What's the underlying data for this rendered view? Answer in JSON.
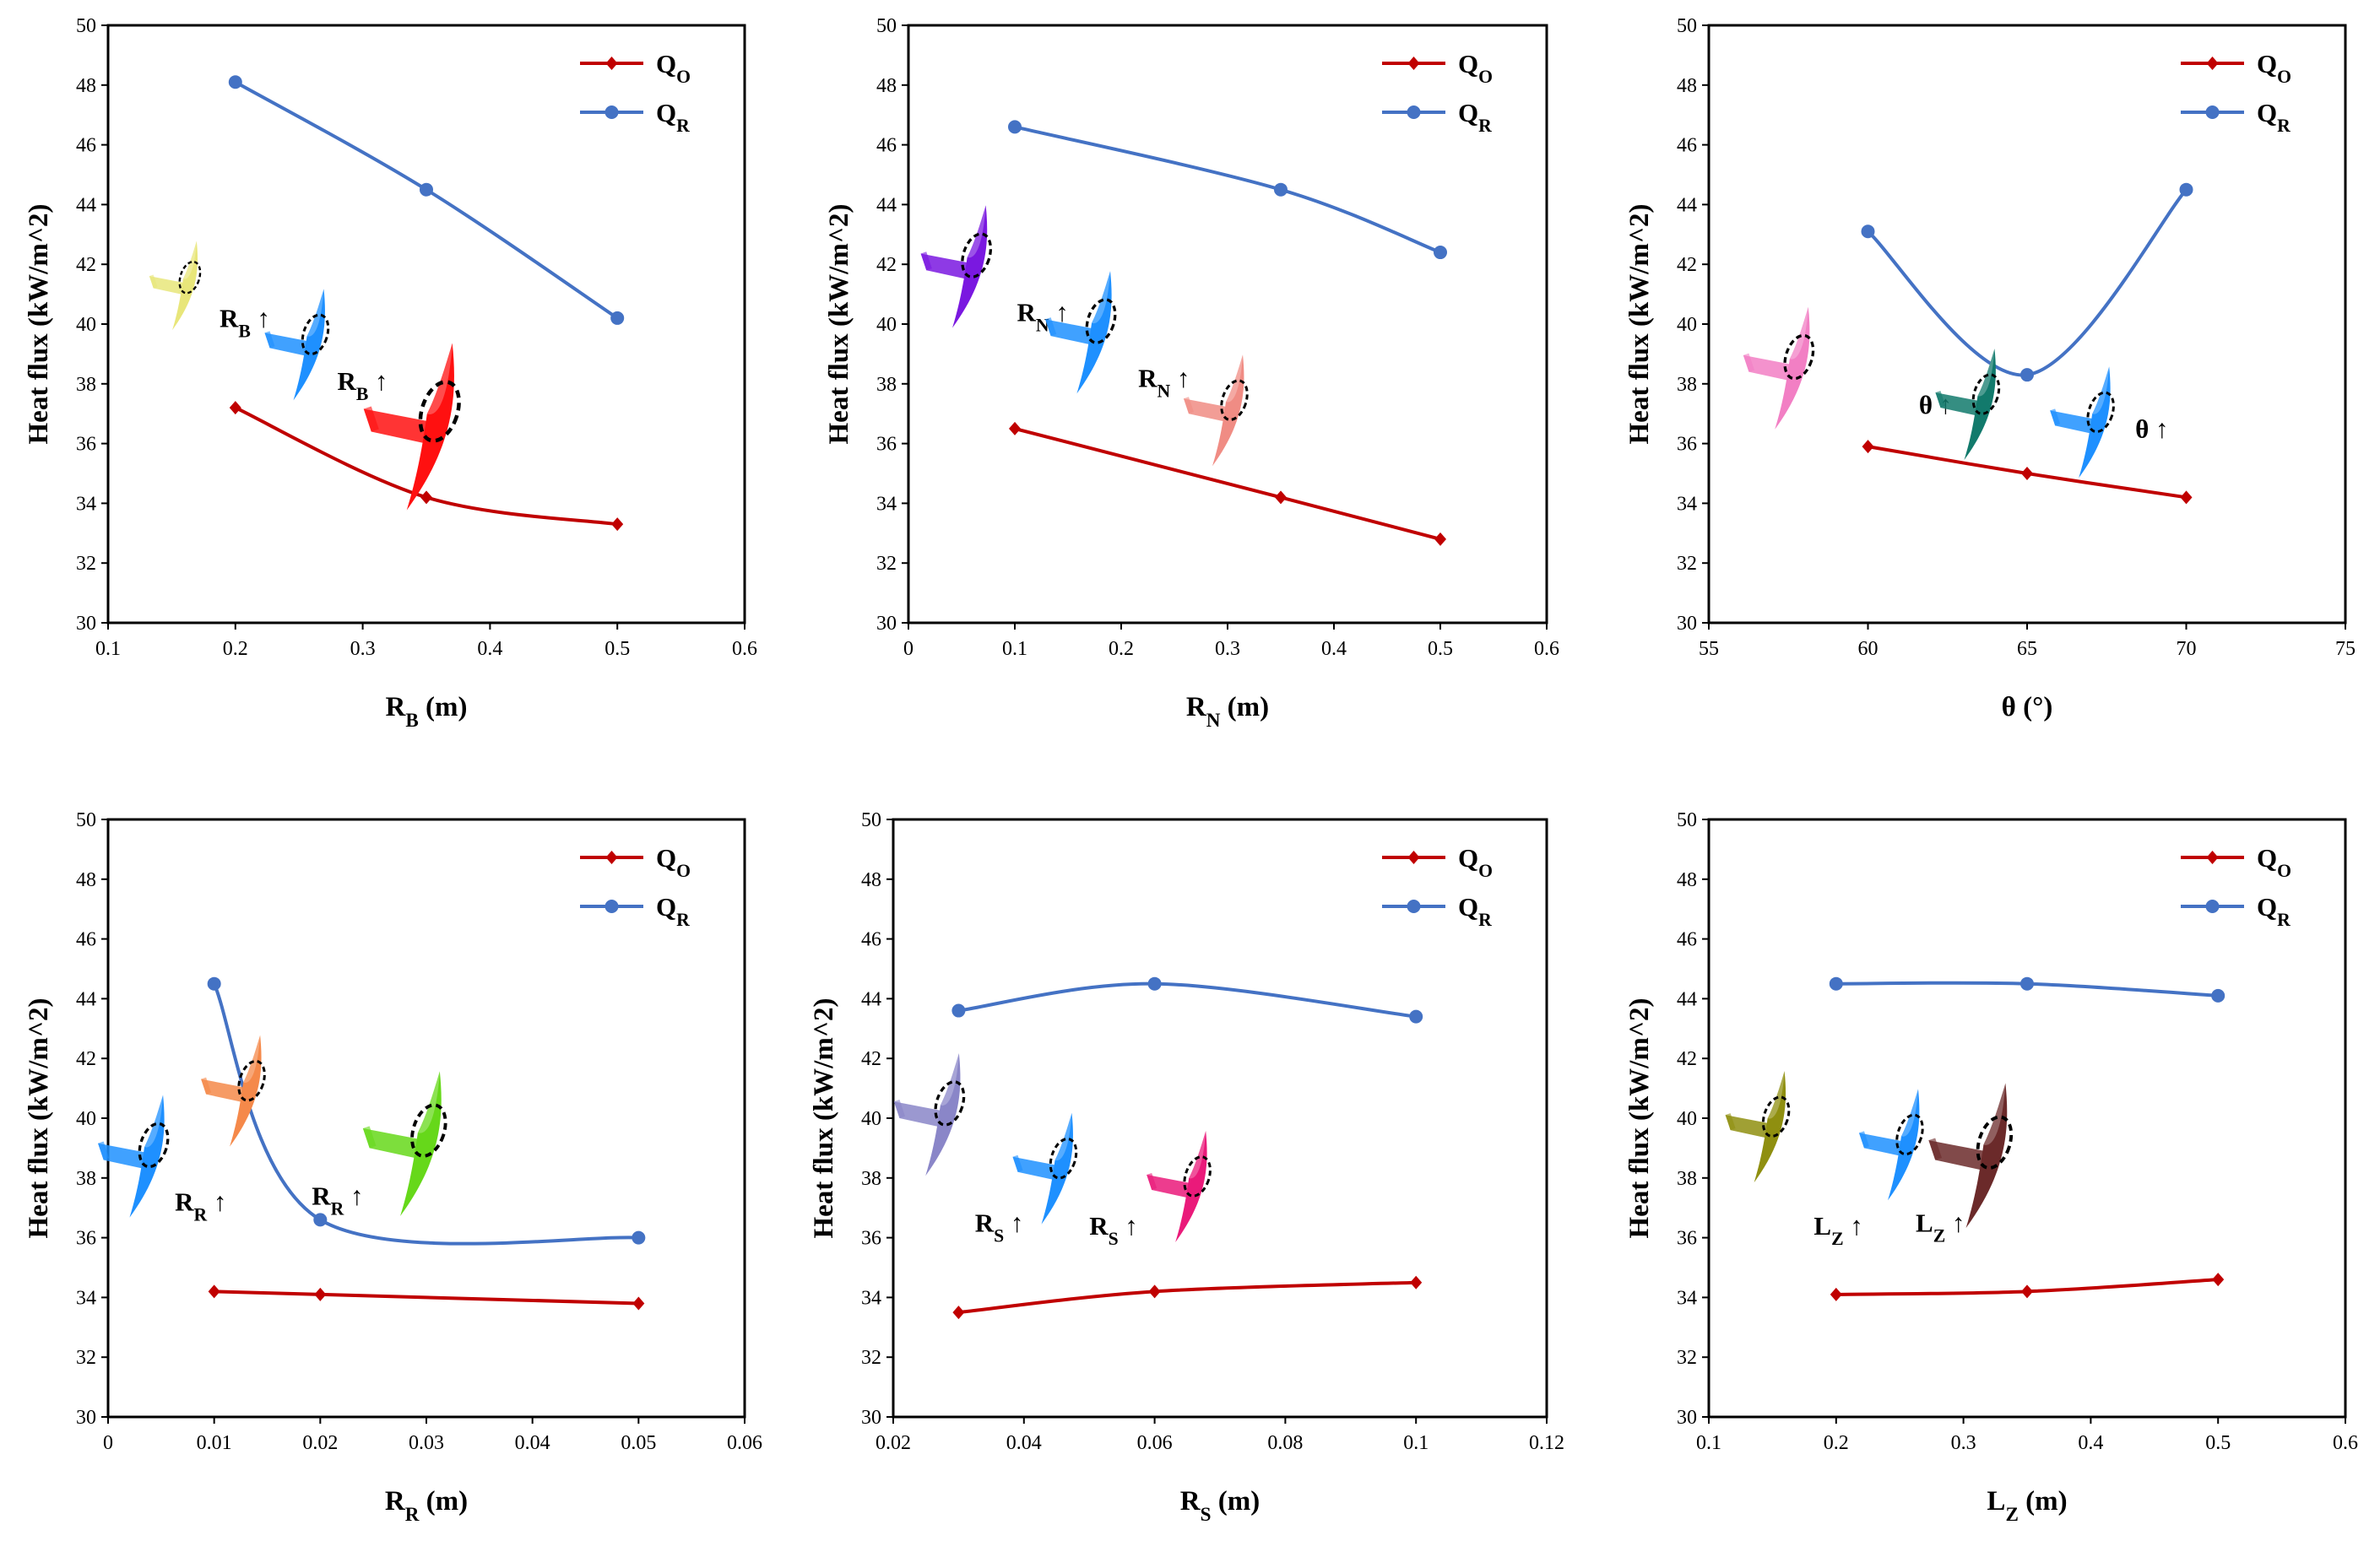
{
  "colors": {
    "qo": "#c00000",
    "qr": "#4472c4"
  },
  "chart_data": [
    {
      "type": "line",
      "xlabel": {
        "main": "R",
        "sub": "B",
        "unit": " (m)"
      },
      "ylabel": "Heat flux (kW/m^2)",
      "xlim": [
        0.1,
        0.6
      ],
      "xticks": [
        0.1,
        0.2,
        0.3,
        0.4,
        0.5,
        0.6
      ],
      "ylim": [
        30,
        50
      ],
      "yticks": [
        30,
        32,
        34,
        36,
        38,
        40,
        42,
        44,
        46,
        48,
        50
      ],
      "series": [
        {
          "name": {
            "main": "Q",
            "sub": "O"
          },
          "x": [
            0.2,
            0.35,
            0.5
          ],
          "y": [
            37.2,
            34.2,
            33.3
          ]
        },
        {
          "name": {
            "main": "Q",
            "sub": "R"
          },
          "x": [
            0.2,
            0.35,
            0.5
          ],
          "y": [
            48.1,
            44.5,
            40.2
          ]
        }
      ],
      "annotations": [
        {
          "main": "R",
          "sub": "B",
          "arrow": " ↑"
        },
        {
          "main": "R",
          "sub": "B",
          "arrow": " ↑"
        }
      ],
      "icons": [
        {
          "name": "lightyellow-blade-icon",
          "color": "#e8e67a"
        },
        {
          "name": "blue-blade-icon",
          "color": "#1e90ff"
        },
        {
          "name": "red-blade-icon",
          "color": "#ff1010"
        }
      ]
    },
    {
      "type": "line",
      "xlabel": {
        "main": "R",
        "sub": "N",
        "unit": " (m)"
      },
      "ylabel": "Heat flux (kW/m^2)",
      "xlim": [
        0,
        0.6
      ],
      "xticks": [
        0,
        0.1,
        0.2,
        0.3,
        0.4,
        0.5,
        0.6
      ],
      "ylim": [
        30,
        50
      ],
      "yticks": [
        30,
        32,
        34,
        36,
        38,
        40,
        42,
        44,
        46,
        48,
        50
      ],
      "series": [
        {
          "name": {
            "main": "Q",
            "sub": "O"
          },
          "x": [
            0.1,
            0.35,
            0.5
          ],
          "y": [
            36.5,
            34.2,
            32.8
          ]
        },
        {
          "name": {
            "main": "Q",
            "sub": "R"
          },
          "x": [
            0.1,
            0.35,
            0.5
          ],
          "y": [
            46.6,
            44.5,
            42.4
          ]
        }
      ],
      "annotations": [
        {
          "main": "R",
          "sub": "N",
          "arrow": " ↑"
        },
        {
          "main": "R",
          "sub": "N",
          "arrow": " ↑"
        }
      ],
      "icons": [
        {
          "name": "purple-blade-icon",
          "color": "#7a18e0"
        },
        {
          "name": "blue-blade-icon",
          "color": "#1e90ff"
        },
        {
          "name": "salmon-blade-icon",
          "color": "#f08c84"
        }
      ]
    },
    {
      "type": "line",
      "xlabel": {
        "main": "θ",
        "sub": "",
        "unit": " (°)"
      },
      "ylabel": "Heat flux (kW/m^2)",
      "xlim": [
        55,
        75
      ],
      "xticks": [
        55,
        60,
        65,
        70,
        75
      ],
      "ylim": [
        30,
        50
      ],
      "yticks": [
        30,
        32,
        34,
        36,
        38,
        40,
        42,
        44,
        46,
        48,
        50
      ],
      "series": [
        {
          "name": {
            "main": "Q",
            "sub": "O"
          },
          "x": [
            60,
            65,
            70
          ],
          "y": [
            35.9,
            35.0,
            34.2
          ]
        },
        {
          "name": {
            "main": "Q",
            "sub": "R"
          },
          "x": [
            60,
            65,
            70
          ],
          "y": [
            43.1,
            38.3,
            44.5
          ]
        }
      ],
      "annotations": [
        {
          "main": "θ",
          "sub": "",
          "arrow": " ↑"
        },
        {
          "main": "θ",
          "sub": "",
          "arrow": " ↑"
        }
      ],
      "icons": [
        {
          "name": "pink-blade-icon",
          "color": "#f27fc4"
        },
        {
          "name": "teal-blade-icon",
          "color": "#127a6c"
        },
        {
          "name": "blue-blade-icon",
          "color": "#1e90ff"
        }
      ]
    },
    {
      "type": "line",
      "xlabel": {
        "main": "R",
        "sub": "R",
        "unit": " (m)"
      },
      "ylabel": "Heat flux (kW/m^2)",
      "xlim": [
        0,
        0.06
      ],
      "xticks": [
        0,
        0.01,
        0.02,
        0.03,
        0.04,
        0.05,
        0.06
      ],
      "ylim": [
        30,
        50
      ],
      "yticks": [
        30,
        32,
        34,
        36,
        38,
        40,
        42,
        44,
        46,
        48,
        50
      ],
      "series": [
        {
          "name": {
            "main": "Q",
            "sub": "O"
          },
          "x": [
            0.01,
            0.02,
            0.05
          ],
          "y": [
            34.2,
            34.1,
            33.8
          ]
        },
        {
          "name": {
            "main": "Q",
            "sub": "R"
          },
          "x": [
            0.01,
            0.02,
            0.05
          ],
          "y": [
            44.5,
            36.6,
            36.0
          ]
        }
      ],
      "annotations": [
        {
          "main": "R",
          "sub": "R",
          "arrow": " ↑"
        },
        {
          "main": "R",
          "sub": "R",
          "arrow": " ↑"
        }
      ],
      "icons": [
        {
          "name": "blue-blade-icon",
          "color": "#1e90ff"
        },
        {
          "name": "orange-blade-icon",
          "color": "#f5894a"
        },
        {
          "name": "green-blade-icon",
          "color": "#66d81a"
        }
      ]
    },
    {
      "type": "line",
      "xlabel": {
        "main": "R",
        "sub": "S",
        "unit": " (m)"
      },
      "ylabel": "Heat flux (kW/m^2)",
      "xlim": [
        0.02,
        0.12
      ],
      "xticks": [
        0.02,
        0.04,
        0.06,
        0.08,
        0.1,
        0.12
      ],
      "ylim": [
        30,
        50
      ],
      "yticks": [
        30,
        32,
        34,
        36,
        38,
        40,
        42,
        44,
        46,
        48,
        50
      ],
      "series": [
        {
          "name": {
            "main": "Q",
            "sub": "O"
          },
          "x": [
            0.03,
            0.06,
            0.1
          ],
          "y": [
            33.5,
            34.2,
            34.5
          ]
        },
        {
          "name": {
            "main": "Q",
            "sub": "R"
          },
          "x": [
            0.03,
            0.06,
            0.1
          ],
          "y": [
            43.6,
            44.5,
            43.4
          ]
        }
      ],
      "annotations": [
        {
          "main": "R",
          "sub": "S",
          "arrow": " ↑"
        },
        {
          "main": "R",
          "sub": "S",
          "arrow": " ↑"
        }
      ],
      "icons": [
        {
          "name": "lavender-blade-icon",
          "color": "#8a86c8"
        },
        {
          "name": "blue-blade-icon",
          "color": "#1e90ff"
        },
        {
          "name": "magenta-blade-icon",
          "color": "#ea1a7a"
        }
      ]
    },
    {
      "type": "line",
      "xlabel": {
        "main": "L",
        "sub": "Z",
        "unit": " (m)"
      },
      "ylabel": "Heat flux (kW/m^2)",
      "xlim": [
        0.1,
        0.6
      ],
      "xticks": [
        0.1,
        0.2,
        0.3,
        0.4,
        0.5,
        0.6
      ],
      "ylim": [
        30,
        50
      ],
      "yticks": [
        30,
        32,
        34,
        36,
        38,
        40,
        42,
        44,
        46,
        48,
        50
      ],
      "series": [
        {
          "name": {
            "main": "Q",
            "sub": "O"
          },
          "x": [
            0.2,
            0.35,
            0.5
          ],
          "y": [
            34.1,
            34.2,
            34.6
          ]
        },
        {
          "name": {
            "main": "Q",
            "sub": "R"
          },
          "x": [
            0.2,
            0.35,
            0.5
          ],
          "y": [
            44.5,
            44.5,
            44.1
          ]
        }
      ],
      "annotations": [
        {
          "main": "L",
          "sub": "Z",
          "arrow": " ↑"
        },
        {
          "main": "L",
          "sub": "Z",
          "arrow": " ↑"
        }
      ],
      "icons": [
        {
          "name": "olive-blade-icon",
          "color": "#8f8f10"
        },
        {
          "name": "blue-blade-icon",
          "color": "#1e90ff"
        },
        {
          "name": "brown-blade-icon",
          "color": "#6b2a2a"
        }
      ]
    }
  ]
}
